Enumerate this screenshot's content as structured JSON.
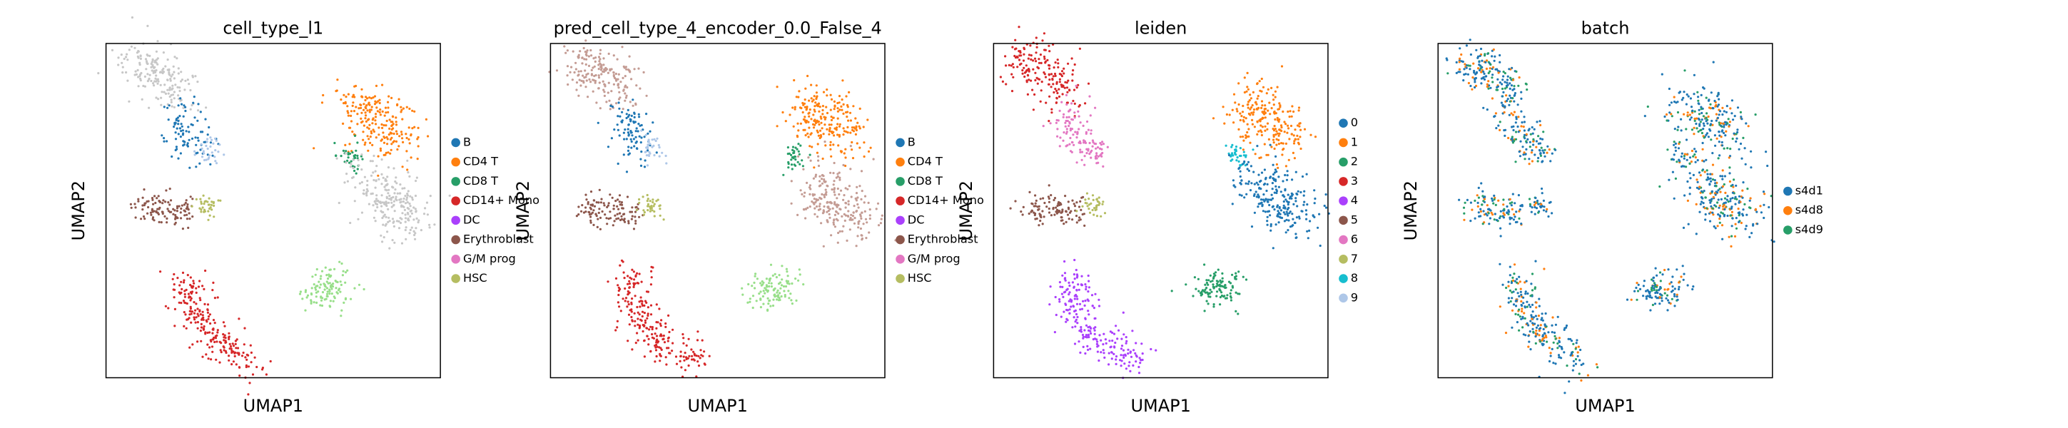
{
  "figure": {
    "background": "#ffffff"
  },
  "chart_data": [
    {
      "type": "scatter",
      "title": "cell_type_l1",
      "xlabel": "UMAP1",
      "ylabel": "UMAP2",
      "xticks": [],
      "yticks": [],
      "grid": false,
      "legend_position": "right",
      "legend": [
        {
          "label": "B",
          "color": "#1f77b4"
        },
        {
          "label": "CD4 T",
          "color": "#ff7f0e"
        },
        {
          "label": "CD8 T",
          "color": "#279e68"
        },
        {
          "label": "CD14+ Mono",
          "color": "#d62728"
        },
        {
          "label": "DC",
          "color": "#aa40fc"
        },
        {
          "label": "Erythroblast",
          "color": "#8c564b"
        },
        {
          "label": "G/M prog",
          "color": "#e377c2"
        },
        {
          "label": "HSC",
          "color": "#b5bd61"
        }
      ]
    },
    {
      "type": "scatter",
      "title": "pred_cell_type_4_encoder_0.0_False_4",
      "xlabel": "UMAP1",
      "ylabel": "UMAP2",
      "xticks": [],
      "yticks": [],
      "grid": false,
      "legend_position": "right",
      "legend": [
        {
          "label": "B",
          "color": "#1f77b4"
        },
        {
          "label": "CD4 T",
          "color": "#ff7f0e"
        },
        {
          "label": "CD8 T",
          "color": "#279e68"
        },
        {
          "label": "CD14+ Mono",
          "color": "#d62728"
        },
        {
          "label": "DC",
          "color": "#aa40fc"
        },
        {
          "label": "Erythroblast",
          "color": "#8c564b"
        },
        {
          "label": "G/M prog",
          "color": "#e377c2"
        },
        {
          "label": "HSC",
          "color": "#b5bd61"
        }
      ]
    },
    {
      "type": "scatter",
      "title": "leiden",
      "xlabel": "UMAP1",
      "ylabel": "UMAP2",
      "xticks": [],
      "yticks": [],
      "grid": false,
      "legend_position": "right",
      "legend": [
        {
          "label": "0",
          "color": "#1f77b4"
        },
        {
          "label": "1",
          "color": "#ff7f0e"
        },
        {
          "label": "2",
          "color": "#279e68"
        },
        {
          "label": "3",
          "color": "#d62728"
        },
        {
          "label": "4",
          "color": "#aa40fc"
        },
        {
          "label": "5",
          "color": "#8c564b"
        },
        {
          "label": "6",
          "color": "#e377c2"
        },
        {
          "label": "7",
          "color": "#b5bd61"
        },
        {
          "label": "8",
          "color": "#17becf"
        },
        {
          "label": "9",
          "color": "#aec7e8"
        }
      ]
    },
    {
      "type": "scatter",
      "title": "batch",
      "xlabel": "UMAP1",
      "ylabel": "UMAP2",
      "xticks": [],
      "yticks": [],
      "grid": false,
      "legend_position": "right",
      "legend": [
        {
          "label": "s4d1",
          "color": "#1f77b4"
        },
        {
          "label": "s4d8",
          "color": "#ff7f0e"
        },
        {
          "label": "s4d9",
          "color": "#279e68"
        }
      ]
    }
  ]
}
